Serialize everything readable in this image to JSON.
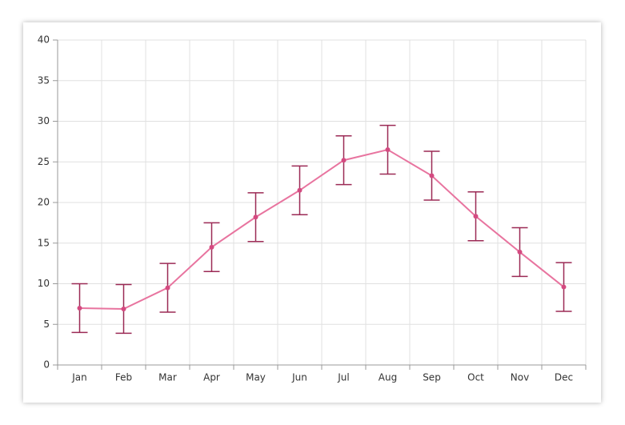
{
  "chart_data": {
    "type": "line",
    "categories": [
      "Jan",
      "Feb",
      "Mar",
      "Apr",
      "May",
      "Jun",
      "Jul",
      "Aug",
      "Sep",
      "Oct",
      "Nov",
      "Dec"
    ],
    "values": [
      7,
      6.9,
      9.5,
      14.5,
      18.2,
      21.5,
      25.2,
      26.5,
      23.3,
      18.3,
      13.9,
      9.6
    ],
    "errors": [
      3,
      3,
      3,
      3,
      3,
      3,
      3,
      3,
      3,
      3,
      3,
      3
    ],
    "color": "#e8749f",
    "marker_color": "#d44a80",
    "error_color": "#9b2a55",
    "ylim": [
      0,
      40
    ],
    "yticks": [
      0,
      5,
      10,
      15,
      20,
      25,
      30,
      35,
      40
    ],
    "grid": true
  }
}
